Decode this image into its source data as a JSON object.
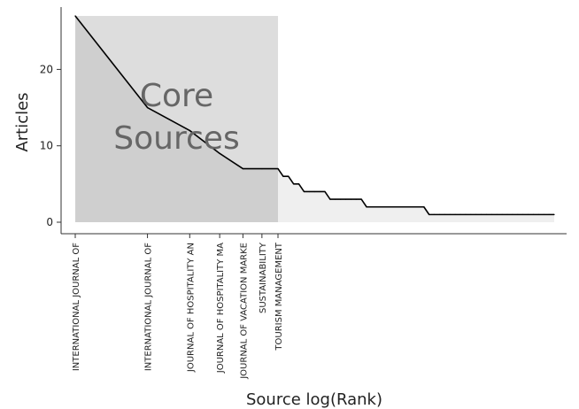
{
  "chart_data": {
    "type": "line",
    "title": "",
    "xlabel": "Source log(Rank)",
    "ylabel": "Articles",
    "x_scale": "log",
    "ylim": [
      0,
      27
    ],
    "y_ticks": [
      0,
      10,
      20
    ],
    "grid": false,
    "legend": "none",
    "core_annotation": "Core\nSources",
    "core_rank_range": [
      1,
      7
    ],
    "total_sources": 60,
    "x_tick_labels": [
      {
        "rank": 1,
        "label": "INTERNATIONAL JOURNAL OF"
      },
      {
        "rank": 2,
        "label": "INTERNATIONAL JOURNAL OF"
      },
      {
        "rank": 3,
        "label": "JOURNAL OF HOSPITALITY AN"
      },
      {
        "rank": 4,
        "label": "JOURNAL OF HOSPITALITY MA"
      },
      {
        "rank": 5,
        "label": "JOURNAL OF VACATION MARKE"
      },
      {
        "rank": 6,
        "label": "SUSTAINABILITY"
      },
      {
        "rank": 7,
        "label": "TOURISM MANAGEMENT"
      }
    ],
    "series": [
      {
        "steps": [
          {
            "from": 1,
            "to": 1,
            "value": 27
          },
          {
            "from": 2,
            "to": 2,
            "value": 15
          },
          {
            "from": 3,
            "to": 3,
            "value": 12
          },
          {
            "from": 4,
            "to": 4,
            "value": 9
          },
          {
            "from": 5,
            "to": 7,
            "value": 7
          },
          {
            "from": 8,
            "to": 9,
            "value": 6
          },
          {
            "from": 10,
            "to": 11,
            "value": 5
          },
          {
            "from": 12,
            "to": 16,
            "value": 4
          },
          {
            "from": 17,
            "to": 23,
            "value": 3
          },
          {
            "from": 24,
            "to": 35,
            "value": 2
          },
          {
            "from": 36,
            "to": 60,
            "value": 1
          }
        ]
      }
    ]
  },
  "colors": {
    "core_band": "#cfcfcf",
    "core_band_overlay": "#dddddd",
    "tail_area": "#efefef",
    "line": "#000000",
    "annotation": "#666666",
    "axis": "#333333"
  }
}
